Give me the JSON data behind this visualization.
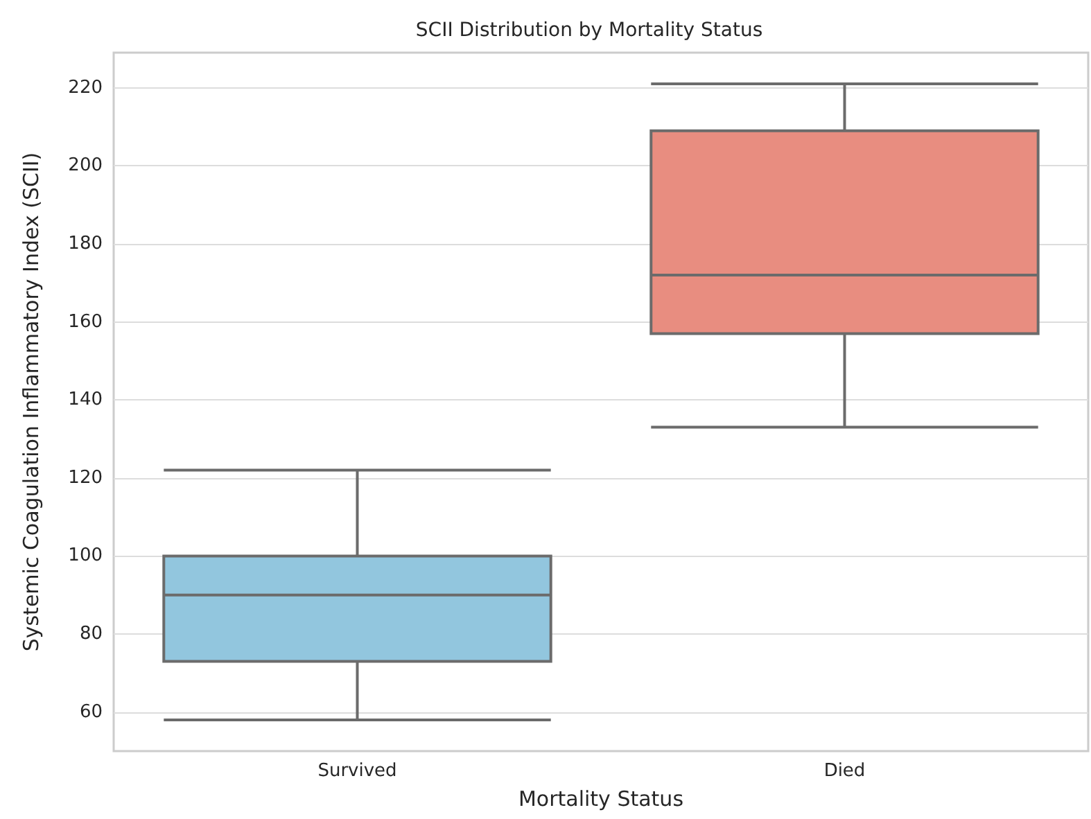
{
  "chart_data": {
    "type": "box",
    "title": "SCII Distribution by Mortality Status",
    "xlabel": "Mortality Status",
    "ylabel": "Systemic Coagulation Inflammatory Index (SCII)",
    "categories": [
      "Survived",
      "Died"
    ],
    "boxes": [
      {
        "low": 58,
        "q1": 73,
        "median": 90,
        "q3": 100,
        "high": 122
      },
      {
        "low": 133,
        "q1": 157,
        "median": 172,
        "q3": 209,
        "high": 221
      }
    ],
    "colors": [
      "#92c6de",
      "#e88d80"
    ],
    "ylim": [
      50,
      229
    ],
    "yticks": [
      60,
      80,
      100,
      120,
      140,
      160,
      180,
      200,
      220
    ],
    "grid": "y"
  }
}
